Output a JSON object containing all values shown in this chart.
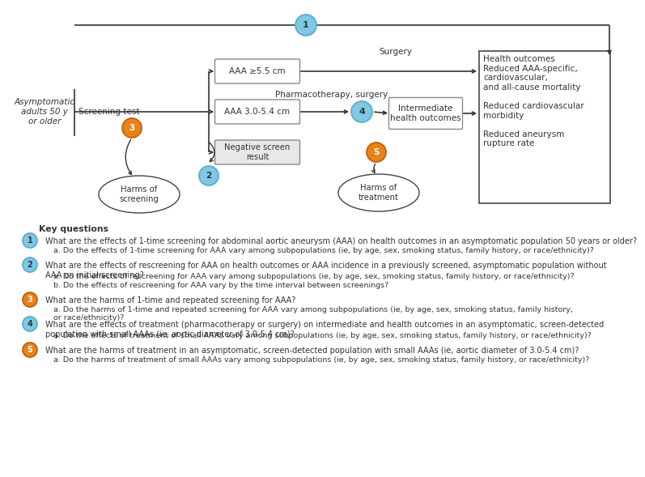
{
  "bg_color": "#ffffff",
  "diagram": {
    "blue_color": "#7ec8e3",
    "blue_edge": "#5aadce",
    "orange_color": "#e8821a",
    "orange_edge": "#c06010"
  },
  "key_questions": {
    "title": "Key questions",
    "kq1_main": "What are the effects of 1-time screening for abdominal aortic aneurysm (AAA) on health outcomes in an asymptomatic population 50 years or older?",
    "kq1_sub": "a. Do the effects of 1-time screening for AAA vary among subpopulations (ie, by age, sex, smoking status, family history, or race/ethnicity)?",
    "kq2_main": "What are the effects of rescreening for AAA on health outcomes or AAA incidence in a previously screened, asymptomatic population without\nAAA on initial screening?",
    "kq2_sub1": "a. Do the effects of rescreening for AAA vary among subpopulations (ie, by age, sex, smoking status, family history, or race/ethnicity)?",
    "kq2_sub2": "b. Do the effects of rescreening for AAA vary by the time interval between screenings?",
    "kq3_main": "What are the harms of 1-time and repeated screening for AAA?",
    "kq3_sub": "a. Do the harms of 1-time and repeated screening for AAA vary among subpopulations (ie, by age, sex, smoking status, family history,\nor race/ethnicity)?",
    "kq4_main": "What are the effects of treatment (pharmacotherapy or surgery) on intermediate and health outcomes in an asymptomatic, screen-detected\npopulation with small AAAs (ie, aortic diameter of 3.0-5.4 cm)?",
    "kq4_sub": "a. Do the effects of treatment of small AAAs vary among subpopulations (ie, by age, sex, smoking status, family history, or race/ethnicity)?",
    "kq5_main": "What are the harms of treatment in an asymptomatic, screen-detected population with small AAAs (ie, aortic diameter of 3.0-5.4 cm)?",
    "kq5_sub": "a. Do the harms of treatment of small AAAs vary among subpopulations (ie, by age, sex, smoking status, family history, or race/ethnicity)?"
  }
}
